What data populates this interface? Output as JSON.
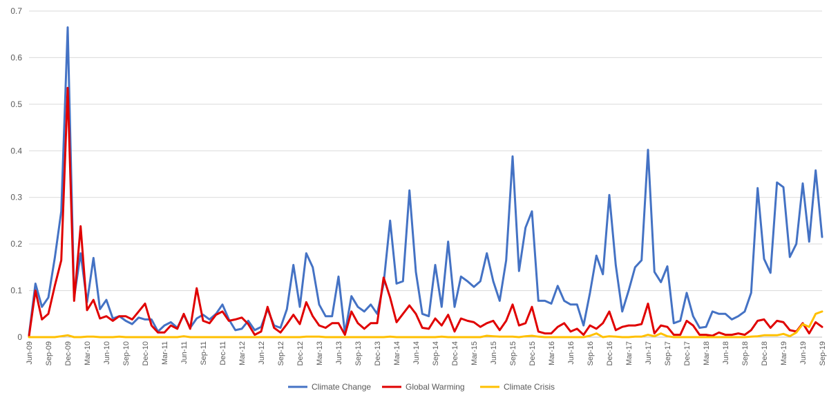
{
  "chart_data": {
    "type": "line",
    "title": "",
    "xlabel": "",
    "ylabel": "",
    "ylim": [
      0,
      0.7
    ],
    "yticks": [
      "0",
      "0.1",
      "0.2",
      "0.3",
      "0.4",
      "0.5",
      "0.6",
      "0.7"
    ],
    "grid": "horizontal",
    "legend": "bottom",
    "x_tick_labels": [
      "Jun-09",
      "Sep-09",
      "Dec-09",
      "Mar-10",
      "Jun-10",
      "Sep-10",
      "Dec-10",
      "Mar-11",
      "Jun-11",
      "Sep-11",
      "Dec-11",
      "Mar-12",
      "Jun-12",
      "Sep-12",
      "Dec-12",
      "Mar-13",
      "Jun-13",
      "Sep-13",
      "Dec-13",
      "Mar-14",
      "Jun-14",
      "Sep-14",
      "Dec-14",
      "Mar-15",
      "Jun-15",
      "Sep-15",
      "Dec-15",
      "Mar-16",
      "Jun-16",
      "Sep-16",
      "Dec-16",
      "Mar-17",
      "Jun-17",
      "Sep-17",
      "Dec-17",
      "Mar-18",
      "Jun-18",
      "Sep-18",
      "Dec-18",
      "Mar-19",
      "Jun-19",
      "Sep-19"
    ],
    "x_start": "Jun-09",
    "x_end": "Sep-19",
    "series": [
      {
        "name": "Climate Change",
        "color": "#4472C4",
        "values": [
          0.005,
          0.115,
          0.065,
          0.085,
          0.17,
          0.27,
          0.665,
          0.085,
          0.18,
          0.075,
          0.17,
          0.06,
          0.08,
          0.04,
          0.045,
          0.035,
          0.028,
          0.042,
          0.038,
          0.038,
          0.012,
          0.025,
          0.032,
          0.02,
          0.048,
          0.02,
          0.04,
          0.048,
          0.038,
          0.05,
          0.07,
          0.038,
          0.015,
          0.018,
          0.035,
          0.015,
          0.022,
          0.06,
          0.025,
          0.02,
          0.06,
          0.155,
          0.065,
          0.18,
          0.15,
          0.07,
          0.045,
          0.045,
          0.13,
          0.008,
          0.088,
          0.065,
          0.055,
          0.07,
          0.05,
          0.115,
          0.25,
          0.115,
          0.12,
          0.315,
          0.14,
          0.05,
          0.045,
          0.155,
          0.065,
          0.205,
          0.065,
          0.13,
          0.12,
          0.108,
          0.12,
          0.18,
          0.12,
          0.078,
          0.165,
          0.388,
          0.142,
          0.235,
          0.27,
          0.078,
          0.078,
          0.072,
          0.11,
          0.078,
          0.07,
          0.07,
          0.025,
          0.095,
          0.175,
          0.135,
          0.305,
          0.155,
          0.055,
          0.1,
          0.15,
          0.165,
          0.402,
          0.14,
          0.118,
          0.152,
          0.03,
          0.035,
          0.095,
          0.045,
          0.02,
          0.022,
          0.055,
          0.05,
          0.05,
          0.038,
          0.045,
          0.055,
          0.095,
          0.32,
          0.168,
          0.138,
          0.332,
          0.322,
          0.172,
          0.2,
          0.33,
          0.205,
          0.358,
          0.215
        ]
      },
      {
        "name": "Global Warming",
        "color": "#E00000",
        "values": [
          0.002,
          0.1,
          0.038,
          0.05,
          0.11,
          0.165,
          0.535,
          0.078,
          0.238,
          0.058,
          0.08,
          0.04,
          0.045,
          0.035,
          0.045,
          0.045,
          0.038,
          0.055,
          0.072,
          0.025,
          0.01,
          0.01,
          0.025,
          0.018,
          0.05,
          0.018,
          0.105,
          0.035,
          0.03,
          0.048,
          0.055,
          0.035,
          0.038,
          0.042,
          0.028,
          0.005,
          0.012,
          0.065,
          0.02,
          0.01,
          0.028,
          0.048,
          0.028,
          0.075,
          0.045,
          0.025,
          0.02,
          0.03,
          0.03,
          0.005,
          0.055,
          0.03,
          0.018,
          0.03,
          0.03,
          0.128,
          0.085,
          0.032,
          0.05,
          0.068,
          0.05,
          0.02,
          0.018,
          0.04,
          0.025,
          0.048,
          0.012,
          0.04,
          0.035,
          0.032,
          0.022,
          0.03,
          0.035,
          0.015,
          0.035,
          0.07,
          0.025,
          0.03,
          0.065,
          0.012,
          0.008,
          0.008,
          0.022,
          0.03,
          0.012,
          0.018,
          0.005,
          0.025,
          0.018,
          0.03,
          0.055,
          0.015,
          0.022,
          0.025,
          0.025,
          0.028,
          0.072,
          0.008,
          0.025,
          0.022,
          0.005,
          0.005,
          0.035,
          0.025,
          0.005,
          0.005,
          0.003,
          0.01,
          0.005,
          0.005,
          0.008,
          0.005,
          0.015,
          0.035,
          0.038,
          0.02,
          0.035,
          0.032,
          0.015,
          0.012,
          0.03,
          0.008,
          0.032,
          0.022
        ]
      },
      {
        "name": "Climate Crisis",
        "color": "#FFC000",
        "values": [
          0.0,
          0.0,
          0.0,
          0.0,
          0.0,
          0.002,
          0.004,
          0.0,
          0.0,
          0.001,
          0.001,
          0.0,
          0.0,
          0.0,
          0.001,
          0.0,
          0.0,
          0.0,
          0.0,
          0.0,
          0.0,
          0.0,
          0.0,
          0.0,
          0.002,
          0.0,
          0.0,
          0.0,
          0.0,
          0.0,
          0.0,
          0.0,
          0.0,
          0.0,
          0.0,
          0.0,
          0.0,
          0.0,
          0.0,
          0.0,
          0.0,
          0.0,
          0.0,
          0.001,
          0.001,
          0.001,
          0.0,
          0.0,
          0.0,
          0.0,
          0.0,
          0.0,
          0.0,
          0.0,
          0.0,
          0.0,
          0.001,
          0.0,
          0.0,
          0.0,
          0.0,
          0.0,
          0.0,
          0.0,
          0.001,
          0.0,
          0.0,
          0.0,
          0.0,
          0.0,
          0.0,
          0.003,
          0.002,
          0.001,
          0.001,
          0.001,
          0.0,
          0.002,
          0.003,
          0.001,
          0.0,
          0.0,
          0.0,
          0.0,
          0.0,
          0.0,
          0.0,
          0.003,
          0.008,
          0.0,
          0.002,
          0.001,
          0.0,
          0.0,
          0.001,
          0.001,
          0.005,
          0.002,
          0.008,
          0.002,
          0.0,
          0.0,
          0.0,
          0.0,
          0.0,
          0.0,
          0.0,
          0.0,
          0.0,
          0.0,
          0.0,
          0.0,
          0.001,
          0.002,
          0.004,
          0.004,
          0.004,
          0.007,
          0.002,
          0.01,
          0.028,
          0.022,
          0.05,
          0.055
        ]
      }
    ]
  }
}
